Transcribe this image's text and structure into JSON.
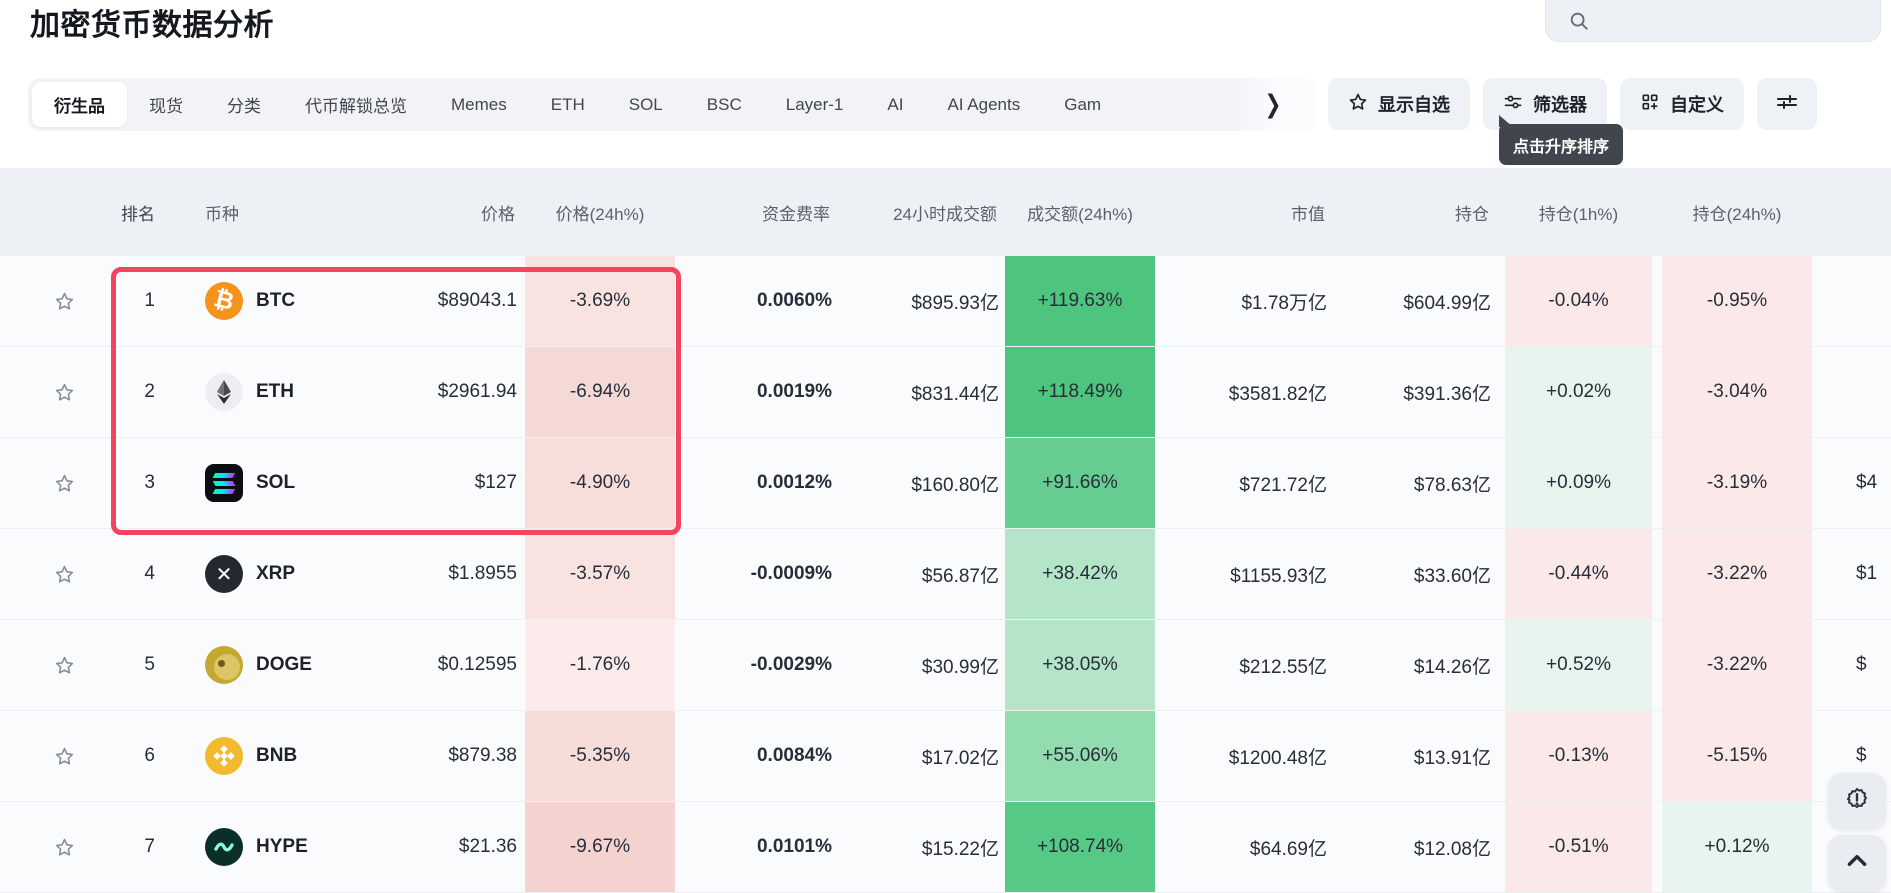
{
  "page": {
    "title": "加密货币数据分析"
  },
  "search": {
    "icon": "search-icon",
    "value": ""
  },
  "tabs": [
    {
      "label": "衍生品",
      "active": true
    },
    {
      "label": "现货",
      "active": false
    },
    {
      "label": "分类",
      "active": false
    },
    {
      "label": "代币解锁总览",
      "active": false
    },
    {
      "label": "Memes",
      "active": false
    },
    {
      "label": "ETH",
      "active": false
    },
    {
      "label": "SOL",
      "active": false
    },
    {
      "label": "BSC",
      "active": false
    },
    {
      "label": "Layer-1",
      "active": false
    },
    {
      "label": "AI",
      "active": false
    },
    {
      "label": "AI Agents",
      "active": false
    },
    {
      "label": "Gam",
      "active": false
    }
  ],
  "toolbar": {
    "show_watchlist": "显示自选",
    "filter": "筛选器",
    "customize": "自定义",
    "icons": [
      "star-icon",
      "filter-sliders-icon",
      "grid-plus-icon",
      "tune-icon"
    ]
  },
  "tooltip": {
    "text": "点击升序排序"
  },
  "table": {
    "columns": [
      "排名",
      "币种",
      "价格",
      "价格(24h%)",
      "资金费率",
      "24小时成交额",
      "成交额(24h%)",
      "市值",
      "持仓",
      "持仓(1h%)",
      "持仓(24h%)"
    ],
    "rows": [
      {
        "rank": "1",
        "symbol": "BTC",
        "icon": "btc",
        "price": "$89043.1",
        "pchg": "-3.69%",
        "pchg_bg": "#f8e3e1",
        "funding": "0.0060%",
        "funding_tone": "dark",
        "vol": "$895.93亿",
        "volchg": "+119.63%",
        "volchg_bg": "#4ec57e",
        "mcap": "$1.78万亿",
        "oi": "$604.99亿",
        "oi1h": "-0.04%",
        "oi1h_tone": "down",
        "oi24h": "-0.95%",
        "oi24h_tone": "down",
        "tail": ""
      },
      {
        "rank": "2",
        "symbol": "ETH",
        "icon": "eth",
        "price": "$2961.94",
        "pchg": "-6.94%",
        "pchg_bg": "#f5d9d7",
        "funding": "0.0019%",
        "funding_tone": "green",
        "vol": "$831.44亿",
        "volchg": "+118.49%",
        "volchg_bg": "#4ec57e",
        "mcap": "$3581.82亿",
        "oi": "$391.36亿",
        "oi1h": "+0.02%",
        "oi1h_tone": "up",
        "oi24h": "-3.04%",
        "oi24h_tone": "down",
        "tail": ""
      },
      {
        "rank": "3",
        "symbol": "SOL",
        "icon": "sol",
        "price": "$127",
        "pchg": "-4.90%",
        "pchg_bg": "#f7dedb",
        "funding": "0.0012%",
        "funding_tone": "green",
        "vol": "$160.80亿",
        "volchg": "+91.66%",
        "volchg_bg": "#67cd92",
        "mcap": "$721.72亿",
        "oi": "$78.63亿",
        "oi1h": "+0.09%",
        "oi1h_tone": "up",
        "oi24h": "-3.19%",
        "oi24h_tone": "down",
        "tail": "$4"
      },
      {
        "rank": "4",
        "symbol": "XRP",
        "icon": "xrp",
        "price": "$1.8955",
        "pchg": "-3.57%",
        "pchg_bg": "#f8e3e1",
        "funding": "-0.0009%",
        "funding_tone": "green",
        "vol": "$56.87亿",
        "volchg": "+38.42%",
        "volchg_bg": "#b4e5c8",
        "mcap": "$1155.93亿",
        "oi": "$33.60亿",
        "oi1h": "-0.44%",
        "oi1h_tone": "down",
        "oi24h": "-3.22%",
        "oi24h_tone": "down",
        "tail": "$1"
      },
      {
        "rank": "5",
        "symbol": "DOGE",
        "icon": "doge",
        "price": "$0.12595",
        "pchg": "-1.76%",
        "pchg_bg": "#fbebea",
        "funding": "-0.0029%",
        "funding_tone": "green",
        "vol": "$30.99亿",
        "volchg": "+38.05%",
        "volchg_bg": "#b4e5c8",
        "mcap": "$212.55亿",
        "oi": "$14.26亿",
        "oi1h": "+0.52%",
        "oi1h_tone": "up",
        "oi24h": "-3.22%",
        "oi24h_tone": "down",
        "tail": "$"
      },
      {
        "rank": "6",
        "symbol": "BNB",
        "icon": "bnb",
        "price": "$879.38",
        "pchg": "-5.35%",
        "pchg_bg": "#f7ddda",
        "funding": "0.0084%",
        "funding_tone": "dark",
        "vol": "$17.02亿",
        "volchg": "+55.06%",
        "volchg_bg": "#93dcb0",
        "mcap": "$1200.48亿",
        "oi": "$13.91亿",
        "oi1h": "-0.13%",
        "oi1h_tone": "down",
        "oi24h": "-5.15%",
        "oi24h_tone": "down",
        "tail": "$"
      },
      {
        "rank": "7",
        "symbol": "HYPE",
        "icon": "hype",
        "price": "$21.36",
        "pchg": "-9.67%",
        "pchg_bg": "#f4d2cf",
        "funding": "0.0101%",
        "funding_tone": "red",
        "vol": "$15.22亿",
        "volchg": "+108.74%",
        "volchg_bg": "#55c985",
        "mcap": "$64.69亿",
        "oi": "$12.08亿",
        "oi1h": "-0.51%",
        "oi1h_tone": "down",
        "oi24h": "+0.12%",
        "oi24h_tone": "up",
        "tail": "$"
      }
    ]
  },
  "colors": {
    "accent_red_box": "#f4455e",
    "header_bg": "#edf0f5",
    "pink_column": "#f8e3e1",
    "green_strong": "#4ec57e",
    "green_light": "#b4e5c8",
    "oi_up_bg": "#e8f5ee",
    "oi_down_bg": "#fbe9e9",
    "funding_green": "#0fae6e",
    "funding_red": "#ef5c5c",
    "tooltip_bg": "#41464e"
  },
  "floating": {
    "icons": [
      "badge-exclamation-icon",
      "chevron-up-icon"
    ]
  }
}
